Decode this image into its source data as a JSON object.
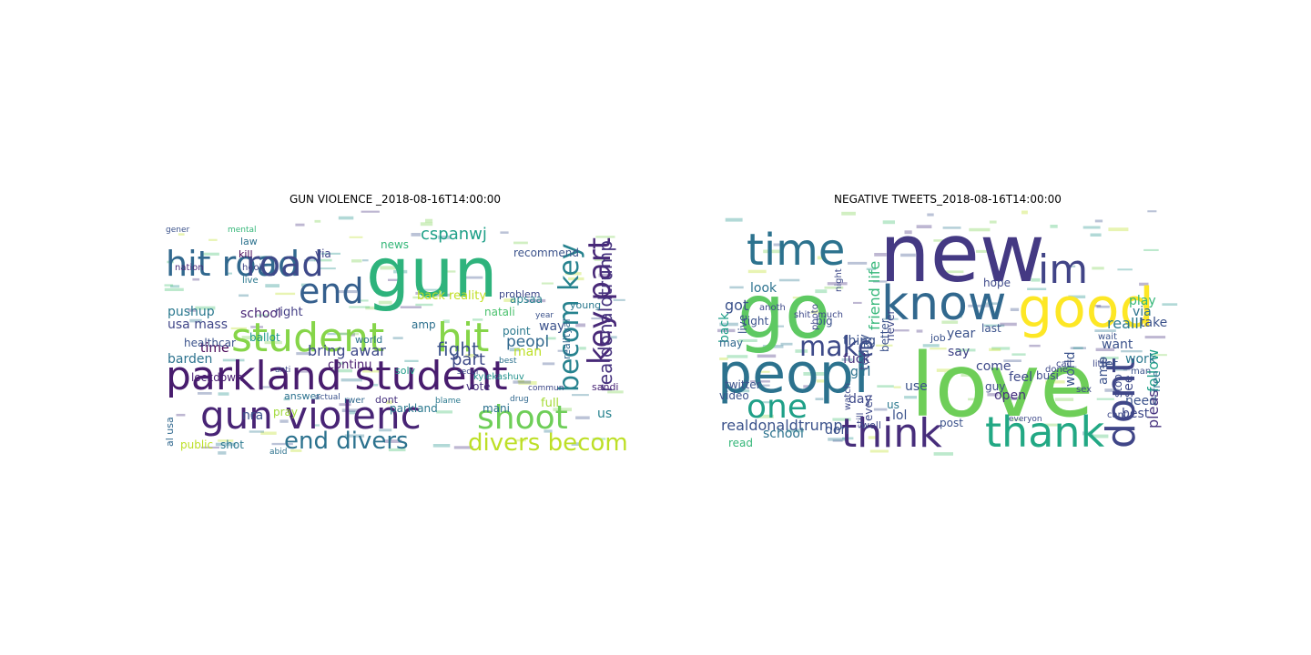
{
  "figure": {
    "panels": [
      {
        "title": "GUN VIOLENCE _2018-08-16T14:00:00",
        "words": [
          {
            "text": "gun",
            "color": "#2eb37c"
          },
          {
            "text": "parkland student",
            "color": "#481c6e"
          },
          {
            "text": "student",
            "color": "#86d549"
          },
          {
            "text": "hit",
            "color": "#86d549"
          },
          {
            "text": "gun violenc",
            "color": "#482475"
          },
          {
            "text": "hit road",
            "color": "#31688e"
          },
          {
            "text": "road",
            "color": "#3e4989"
          },
          {
            "text": "end",
            "color": "#355f8d"
          },
          {
            "text": "shoot",
            "color": "#6ece58"
          },
          {
            "text": "key part",
            "color": "#482878"
          },
          {
            "text": "becom key",
            "color": "#26828e"
          },
          {
            "text": "end divers",
            "color": "#2c728e"
          },
          {
            "text": "divers becom",
            "color": "#bddf26"
          },
          {
            "text": "realdonaldtrump",
            "color": "#46327e"
          },
          {
            "text": "fight",
            "color": "#3b528b"
          },
          {
            "text": "peopl",
            "color": "#31688e"
          },
          {
            "text": "part",
            "color": "#3e4a89"
          },
          {
            "text": "cspanwj",
            "color": "#1fa088"
          },
          {
            "text": "bring awar",
            "color": "#3e4989"
          },
          {
            "text": "school",
            "color": "#482475"
          },
          {
            "text": "pushup",
            "color": "#2a788e"
          },
          {
            "text": "time",
            "color": "#440154"
          },
          {
            "text": "way",
            "color": "#3b528b"
          },
          {
            "text": "usa mass",
            "color": "#404688"
          },
          {
            "text": "nra",
            "color": "#3b528b"
          },
          {
            "text": "barden",
            "color": "#2c728e"
          },
          {
            "text": "ballot",
            "color": "#1f988b"
          },
          {
            "text": "continu",
            "color": "#481c6e"
          },
          {
            "text": "right",
            "color": "#433e85"
          },
          {
            "text": "amp",
            "color": "#2d708e"
          },
          {
            "text": "back reality",
            "color": "#c2df23"
          },
          {
            "text": "man",
            "color": "#bddf26"
          },
          {
            "text": "us",
            "color": "#26828e"
          },
          {
            "text": "mani",
            "color": "#2c728e"
          },
          {
            "text": "full",
            "color": "#a5db36"
          },
          {
            "text": "lockdown",
            "color": "#481f71"
          },
          {
            "text": "healthcar",
            "color": "#3b528b"
          },
          {
            "text": "shot",
            "color": "#2a788e"
          },
          {
            "text": "pray",
            "color": "#a0da39"
          },
          {
            "text": "public",
            "color": "#bddf26"
          },
          {
            "text": "vote",
            "color": "#46327e"
          },
          {
            "text": "point",
            "color": "#2a788e"
          },
          {
            "text": "natali",
            "color": "#4ac16d"
          },
          {
            "text": "apsaa",
            "color": "#26828e"
          },
          {
            "text": "recommend",
            "color": "#3b528b"
          },
          {
            "text": "news",
            "color": "#35b779"
          },
          {
            "text": "kill",
            "color": "#440154"
          },
          {
            "text": "law",
            "color": "#2c728e"
          },
          {
            "text": "parkland",
            "color": "#2a788e"
          },
          {
            "text": "answer",
            "color": "#2c728e"
          },
          {
            "text": "solv",
            "color": "#1f9e89"
          },
          {
            "text": "world",
            "color": "#2c728e"
          },
          {
            "text": "dont",
            "color": "#46327e"
          },
          {
            "text": "sandi",
            "color": "#482475"
          },
          {
            "text": "al usa",
            "color": "#31688e"
          },
          {
            "text": "young",
            "color": "#2a788e"
          },
          {
            "text": "realityal",
            "color": "#31688e"
          },
          {
            "text": "kyiekashuv",
            "color": "#21918c"
          },
          {
            "text": "problem",
            "color": "#3e4989"
          },
          {
            "text": "via",
            "color": "#404688"
          },
          {
            "text": "hook",
            "color": "#404688"
          },
          {
            "text": "live",
            "color": "#2a788e"
          },
          {
            "text": "nation",
            "color": "#482878"
          },
          {
            "text": "mental",
            "color": "#35b779"
          },
          {
            "text": "gener",
            "color": "#3b528b"
          },
          {
            "text": "anti",
            "color": "#3e4989"
          },
          {
            "text": "abid",
            "color": "#2c728e"
          },
          {
            "text": "actual",
            "color": "#3b528b"
          },
          {
            "text": "rwer",
            "color": "#31688e"
          },
          {
            "text": "blame",
            "color": "#2a788e"
          },
          {
            "text": "secur",
            "color": "#3e4989"
          },
          {
            "text": "drug",
            "color": "#31688e"
          },
          {
            "text": "commun",
            "color": "#3e4989"
          },
          {
            "text": "best",
            "color": "#2c728e"
          },
          {
            "text": "year",
            "color": "#3b528b"
          }
        ]
      },
      {
        "title": "NEGATIVE TWEETS_2018-08-16T14:00:00",
        "words": [
          {
            "text": "new",
            "color": "#443983"
          },
          {
            "text": "love",
            "color": "#6ece58"
          },
          {
            "text": "go",
            "color": "#5ec962"
          },
          {
            "text": "peopl",
            "color": "#2c728e"
          },
          {
            "text": "good",
            "color": "#fde725"
          },
          {
            "text": "know",
            "color": "#31688e"
          },
          {
            "text": "time",
            "color": "#2c728e"
          },
          {
            "text": "im",
            "color": "#414487"
          },
          {
            "text": "think",
            "color": "#472d7b"
          },
          {
            "text": "thank",
            "color": "#22a884"
          },
          {
            "text": "dont",
            "color": "#404688"
          },
          {
            "text": "one",
            "color": "#1fa088"
          },
          {
            "text": "make",
            "color": "#3e4a89"
          },
          {
            "text": "realdonaldtrump",
            "color": "#3b528b"
          },
          {
            "text": "friend life",
            "color": "#35b779"
          },
          {
            "text": "pleas",
            "color": "#46327e"
          },
          {
            "text": "follow",
            "color": "#1fa088"
          },
          {
            "text": "realli",
            "color": "#2a788e"
          },
          {
            "text": "play",
            "color": "#35b779"
          },
          {
            "text": "want",
            "color": "#3b528b"
          },
          {
            "text": "take",
            "color": "#3b528b"
          },
          {
            "text": "via",
            "color": "#2c728e"
          },
          {
            "text": "see",
            "color": "#3e4989"
          },
          {
            "text": "work",
            "color": "#2a788e"
          },
          {
            "text": "amp",
            "color": "#3b528b"
          },
          {
            "text": "world",
            "color": "#3b528b"
          },
          {
            "text": "open",
            "color": "#46327e"
          },
          {
            "text": "best",
            "color": "#3e4989"
          },
          {
            "text": "need",
            "color": "#3b528b"
          },
          {
            "text": "feel",
            "color": "#3e4989"
          },
          {
            "text": "come",
            "color": "#3e4989"
          },
          {
            "text": "say",
            "color": "#414487"
          },
          {
            "text": "let",
            "color": "#3b528b"
          },
          {
            "text": "busi",
            "color": "#3e4989"
          },
          {
            "text": "year",
            "color": "#3b528b"
          },
          {
            "text": "girl",
            "color": "#2c728e"
          },
          {
            "text": "thing",
            "color": "#3b528b"
          },
          {
            "text": "day",
            "color": "#3e4989"
          },
          {
            "text": "lol",
            "color": "#3b528b"
          },
          {
            "text": "use",
            "color": "#3b528b"
          },
          {
            "text": "us",
            "color": "#2a788e"
          },
          {
            "text": "guy",
            "color": "#3e4989"
          },
          {
            "text": "fuck",
            "color": "#46327e"
          },
          {
            "text": "look",
            "color": "#2c728e"
          },
          {
            "text": "got",
            "color": "#3b528b"
          },
          {
            "text": "back",
            "color": "#1f9e89"
          },
          {
            "text": "may",
            "color": "#31688e"
          },
          {
            "text": "right",
            "color": "#3b528b"
          },
          {
            "text": "twitter",
            "color": "#3b528b"
          },
          {
            "text": "school",
            "color": "#2c728e"
          },
          {
            "text": "read",
            "color": "#35b779"
          },
          {
            "text": "video",
            "color": "#3b528b"
          },
          {
            "text": "today",
            "color": "#3b528b"
          },
          {
            "text": "better",
            "color": "#3b528b"
          },
          {
            "text": "never",
            "color": "#3e4989"
          },
          {
            "text": "last",
            "color": "#3b528b"
          },
          {
            "text": "hope",
            "color": "#3e4989"
          },
          {
            "text": "stop",
            "color": "#3e4989"
          },
          {
            "text": "don",
            "color": "#3b528b"
          },
          {
            "text": "even",
            "color": "#3e4989"
          },
          {
            "text": "still",
            "color": "#3e4989"
          },
          {
            "text": "post",
            "color": "#3b528b"
          },
          {
            "text": "big",
            "color": "#3b528b"
          },
          {
            "text": "watch",
            "color": "#3e4989"
          },
          {
            "text": "photo",
            "color": "#3e4989"
          },
          {
            "text": "night",
            "color": "#3e4989"
          },
          {
            "text": "live",
            "color": "#3b528b"
          },
          {
            "text": "anoth",
            "color": "#3e4989"
          },
          {
            "text": "shit",
            "color": "#3e4989"
          },
          {
            "text": "much",
            "color": "#3e4989"
          },
          {
            "text": "sex",
            "color": "#3e4989"
          },
          {
            "text": "done",
            "color": "#3e4989"
          },
          {
            "text": "call",
            "color": "#3e4989"
          },
          {
            "text": "free",
            "color": "#2c728e"
          },
          {
            "text": "man",
            "color": "#3b528b"
          },
          {
            "text": "job",
            "color": "#3b528b"
          },
          {
            "text": "well",
            "color": "#3e4989"
          },
          {
            "text": "cant",
            "color": "#3e4989"
          },
          {
            "text": "littl",
            "color": "#3e4989"
          },
          {
            "text": "wait",
            "color": "#3b528b"
          },
          {
            "text": "everyon",
            "color": "#3e4989"
          }
        ]
      }
    ]
  }
}
